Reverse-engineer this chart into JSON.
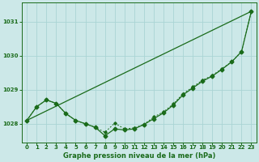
{
  "title": "Graphe pression niveau de la mer (hPa)",
  "background_color": "#cce8e8",
  "grid_color": "#aad4d4",
  "line_color": "#1a6b1a",
  "xlim": [
    -0.5,
    23.5
  ],
  "ylim": [
    1027.45,
    1031.55
  ],
  "yticks": [
    1028,
    1029,
    1030,
    1031
  ],
  "xticks": [
    0,
    1,
    2,
    3,
    4,
    5,
    6,
    7,
    8,
    9,
    10,
    11,
    12,
    13,
    14,
    15,
    16,
    17,
    18,
    19,
    20,
    21,
    22,
    23
  ],
  "main_x": [
    0,
    1,
    2,
    3,
    4,
    5,
    6,
    7,
    8,
    9,
    10,
    11,
    12,
    13,
    14,
    15,
    16,
    17,
    18,
    19,
    20,
    21,
    22,
    23
  ],
  "main_y": [
    1028.1,
    1028.5,
    1028.7,
    1028.6,
    1028.3,
    1028.1,
    1028.0,
    1027.9,
    1027.65,
    1027.85,
    1027.82,
    1027.85,
    1027.98,
    1028.15,
    1028.32,
    1028.55,
    1028.85,
    1029.05,
    1029.25,
    1029.4,
    1029.6,
    1029.82,
    1030.12,
    1031.3
  ],
  "dot_x": [
    0,
    1,
    2,
    3,
    4,
    5,
    6,
    7,
    8,
    9,
    10,
    11,
    12,
    13,
    14,
    15,
    16,
    17,
    18,
    19,
    20,
    21,
    22,
    23
  ],
  "dot_y": [
    1028.1,
    1028.5,
    1028.7,
    1028.6,
    1028.3,
    1028.1,
    1028.0,
    1027.9,
    1027.75,
    1028.02,
    1027.85,
    1027.88,
    1027.98,
    1028.2,
    1028.35,
    1028.58,
    1028.88,
    1029.08,
    1029.28,
    1029.42,
    1029.62,
    1029.82,
    1030.12,
    1031.3
  ],
  "trend_x": [
    0,
    23
  ],
  "trend_y": [
    1028.1,
    1031.3
  ],
  "title_fontsize": 6,
  "tick_fontsize": 5
}
